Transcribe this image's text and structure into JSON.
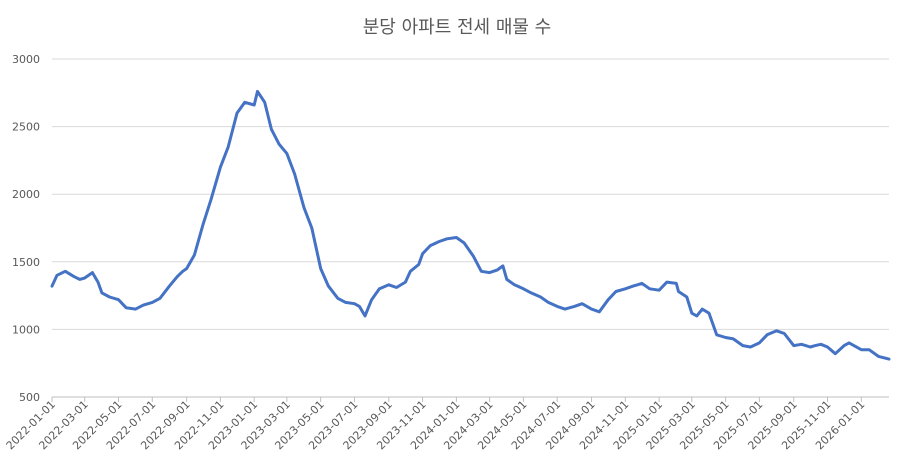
{
  "chart_data": {
    "type": "line",
    "title": "분당 아파트 전세 매물 수",
    "xlabel": "",
    "ylabel": "",
    "ylim": [
      500,
      3000
    ],
    "yticks": [
      500,
      1000,
      1500,
      2000,
      2500,
      3000
    ],
    "xlim": [
      "2022-01-01",
      "2026-02-20"
    ],
    "xticks": [
      "2022-01-01",
      "2022-03-01",
      "2022-05-01",
      "2022-07-01",
      "2022-09-01",
      "2022-11-01",
      "2023-01-01",
      "2023-03-01",
      "2023-05-01",
      "2023-07-01",
      "2023-09-01",
      "2023-11-01",
      "2024-01-01",
      "2024-03-01",
      "2024-05-01",
      "2024-07-01",
      "2024-09-01",
      "2024-11-01",
      "2025-01-01",
      "2025-03-01",
      "2025-05-01",
      "2025-07-01",
      "2025-09-01",
      "2025-11-01",
      "2026-01-01"
    ],
    "grid": true,
    "legend": "none",
    "colors": {
      "series": "#4472c4",
      "grid": "#d9d9d9",
      "text": "#595959"
    },
    "series": [
      {
        "x": [
          "2022-01-01",
          "2022-01-10",
          "2022-01-25",
          "2022-02-10",
          "2022-02-20",
          "2022-03-01",
          "2022-03-15",
          "2022-03-25",
          "2022-04-01",
          "2022-04-15",
          "2022-05-01",
          "2022-05-15",
          "2022-06-01",
          "2022-06-15",
          "2022-07-01",
          "2022-07-15",
          "2022-08-01",
          "2022-08-15",
          "2022-08-25",
          "2022-09-01",
          "2022-09-15",
          "2022-10-01",
          "2022-10-15",
          "2022-11-01",
          "2022-11-15",
          "2022-12-01",
          "2022-12-15",
          "2023-01-01",
          "2023-01-07",
          "2023-01-20",
          "2023-02-01",
          "2023-02-15",
          "2023-03-01",
          "2023-03-15",
          "2023-04-01",
          "2023-04-15",
          "2023-05-01",
          "2023-05-15",
          "2023-06-01",
          "2023-06-15",
          "2023-07-01",
          "2023-07-10",
          "2023-07-20",
          "2023-08-01",
          "2023-08-15",
          "2023-09-01",
          "2023-09-15",
          "2023-10-01",
          "2023-10-10",
          "2023-10-25",
          "2023-11-01",
          "2023-11-15",
          "2023-12-01",
          "2023-12-15",
          "2024-01-01",
          "2024-01-15",
          "2024-02-01",
          "2024-02-15",
          "2024-03-01",
          "2024-03-15",
          "2024-03-25",
          "2024-04-01",
          "2024-04-15",
          "2024-05-01",
          "2024-05-15",
          "2024-06-01",
          "2024-06-15",
          "2024-07-01",
          "2024-07-15",
          "2024-08-01",
          "2024-08-15",
          "2024-09-01",
          "2024-09-15",
          "2024-10-01",
          "2024-10-15",
          "2024-11-01",
          "2024-11-15",
          "2024-12-01",
          "2024-12-15",
          "2025-01-01",
          "2025-01-15",
          "2025-02-01",
          "2025-02-05",
          "2025-02-20",
          "2025-03-01",
          "2025-03-10",
          "2025-03-20",
          "2025-04-01",
          "2025-04-15",
          "2025-05-01",
          "2025-05-15",
          "2025-06-01",
          "2025-06-15",
          "2025-07-01",
          "2025-07-15",
          "2025-08-01",
          "2025-08-15",
          "2025-09-01",
          "2025-09-15",
          "2025-10-01",
          "2025-10-10",
          "2025-10-20",
          "2025-11-01",
          "2025-11-15",
          "2025-12-01",
          "2025-12-10",
          "2026-01-01",
          "2026-01-15",
          "2026-02-01",
          "2026-02-20"
        ],
        "values": [
          1320,
          1400,
          1430,
          1390,
          1370,
          1380,
          1420,
          1350,
          1270,
          1240,
          1220,
          1160,
          1150,
          1180,
          1200,
          1230,
          1320,
          1390,
          1430,
          1450,
          1550,
          1780,
          1960,
          2200,
          2350,
          2600,
          2680,
          2660,
          2760,
          2680,
          2480,
          2370,
          2300,
          2150,
          1900,
          1750,
          1450,
          1320,
          1230,
          1200,
          1190,
          1170,
          1100,
          1220,
          1300,
          1330,
          1310,
          1350,
          1430,
          1480,
          1560,
          1620,
          1650,
          1670,
          1680,
          1640,
          1540,
          1430,
          1420,
          1440,
          1470,
          1370,
          1330,
          1300,
          1270,
          1240,
          1200,
          1170,
          1150,
          1170,
          1190,
          1150,
          1130,
          1220,
          1280,
          1300,
          1320,
          1340,
          1300,
          1290,
          1350,
          1340,
          1280,
          1240,
          1120,
          1100,
          1150,
          1120,
          960,
          940,
          930,
          880,
          870,
          900,
          960,
          990,
          970,
          880,
          890,
          870,
          880,
          890,
          870,
          820,
          880,
          900,
          850,
          850,
          800,
          780
        ]
      }
    ]
  }
}
